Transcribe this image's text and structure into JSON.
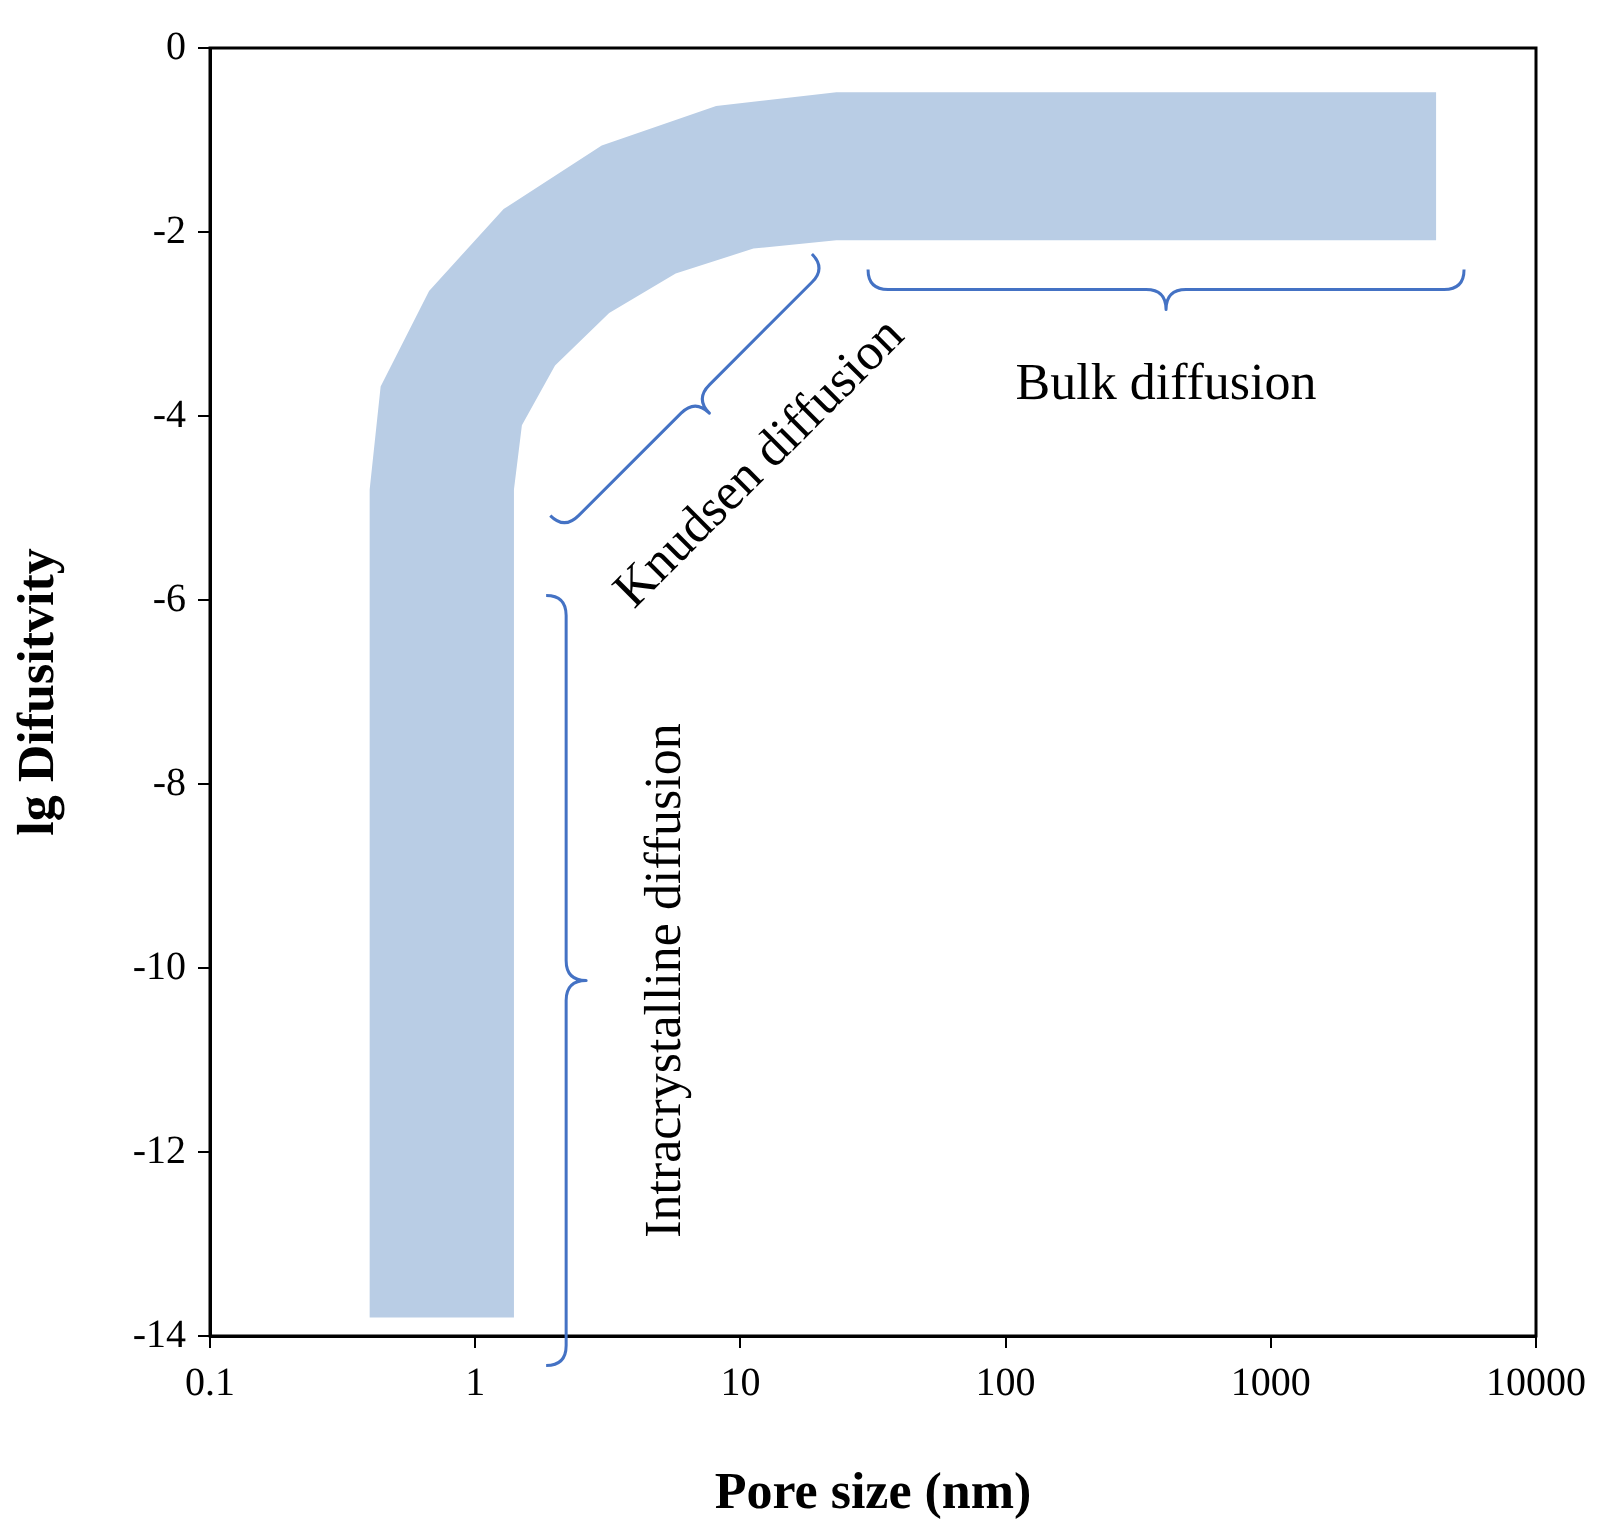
{
  "chart_data": {
    "type": "area",
    "xlabel": "Pore size (nm)",
    "ylabel": "lg Difusitvity",
    "log": "x",
    "grid": false,
    "marker": "none",
    "xlim": [
      0.1,
      10000
    ],
    "xticks": [
      0.1,
      1,
      10,
      100,
      1000,
      10000
    ],
    "ylim": [
      -14,
      0
    ],
    "yticks": [
      -14,
      -12,
      -10,
      -8,
      -6,
      -4,
      -2,
      0
    ],
    "series": [
      {
        "color": "#b9cde5",
        "x": [
          0.4,
          0.4,
          0.44,
          0.67,
          1.28,
          3.0,
          8.1,
          23,
          4200,
          4200,
          23,
          11.2,
          5.7,
          3.2,
          2.0,
          1.5,
          1.4,
          1.4
        ],
        "values": [
          -13.8,
          -4.8,
          -3.68,
          -2.64,
          -1.75,
          -1.06,
          -0.63,
          -0.48,
          -0.48,
          -2.09,
          -2.09,
          -2.18,
          -2.45,
          -2.88,
          -3.45,
          -4.1,
          -4.8,
          -13.8
        ]
      }
    ],
    "annotations": [
      "Bulk diffusion",
      "Knudsen diffusion",
      "Intracrystalline diffusion"
    ]
  }
}
